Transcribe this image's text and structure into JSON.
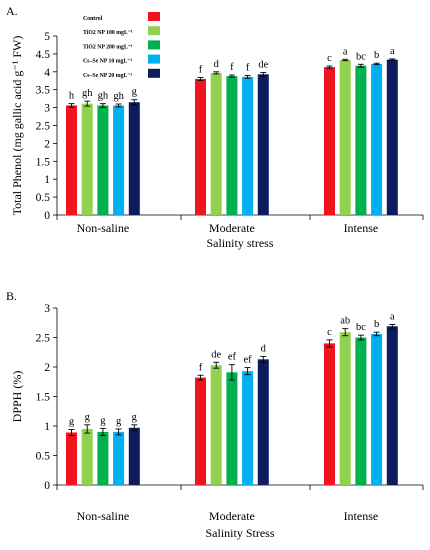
{
  "colors": [
    "#f0141e",
    "#92d050",
    "#00b050",
    "#00b0f0",
    "#0d1c5e"
  ],
  "chart_data": [
    {
      "type": "bar",
      "panel_label": "A.",
      "ylabel": "Total Phenol (mg gallic acid g⁻¹ FW)",
      "xlabel": "Salinity stress",
      "ylim": [
        0,
        5
      ],
      "yticks": [
        "0",
        "0.5",
        "1",
        "1.5",
        "2",
        "2.5",
        "3",
        "3.5",
        "4",
        "4.5",
        "5"
      ],
      "grid": false,
      "legend_position": "top-left",
      "categories": [
        "Non-saline",
        "Moderate",
        "Intense"
      ],
      "series": [
        {
          "name": "Control",
          "values": [
            3.06,
            3.8,
            4.13
          ],
          "errors": [
            0.05,
            0.04,
            0.03
          ],
          "letters": [
            "h",
            "f",
            "c"
          ]
        },
        {
          "name": "TiO2 NP 100 mgL⁻¹",
          "values": [
            3.11,
            3.97,
            4.33
          ],
          "errors": [
            0.07,
            0.03,
            0.02
          ],
          "letters": [
            "gh",
            "d",
            "a"
          ]
        },
        {
          "name": "TiO2 NP 200 mgL⁻¹",
          "values": [
            3.06,
            3.88,
            4.17
          ],
          "errors": [
            0.05,
            0.03,
            0.04
          ],
          "letters": [
            "gh",
            "f",
            "bc"
          ]
        },
        {
          "name": "Cs–Se NP 10 mgL⁻¹",
          "values": [
            3.06,
            3.86,
            4.22
          ],
          "errors": [
            0.04,
            0.04,
            0.02
          ],
          "letters": [
            "gh",
            "f",
            "b"
          ]
        },
        {
          "name": "Cs–Se NP 20 mgL⁻¹",
          "values": [
            3.15,
            3.93,
            4.34
          ],
          "errors": [
            0.07,
            0.05,
            0.02
          ],
          "letters": [
            "g",
            "de",
            "a"
          ]
        }
      ]
    },
    {
      "type": "bar",
      "panel_label": "B.",
      "ylabel": "DPPH (%)",
      "xlabel": "Salinity Stress",
      "ylim": [
        0,
        3
      ],
      "yticks": [
        "0",
        "0.5",
        "1",
        "1.5",
        "2",
        "2.5",
        "3"
      ],
      "grid": false,
      "categories": [
        "Non-saline",
        "Moderate",
        "Intense"
      ],
      "series": [
        {
          "name": "Control",
          "values": [
            0.89,
            1.82,
            2.4
          ],
          "errors": [
            0.05,
            0.04,
            0.06
          ],
          "letters": [
            "g",
            "f",
            "c"
          ]
        },
        {
          "name": "TiO2 NP 100 mgL⁻¹",
          "values": [
            0.95,
            2.03,
            2.59
          ],
          "errors": [
            0.07,
            0.05,
            0.06
          ],
          "letters": [
            "g",
            "de",
            "ab"
          ]
        },
        {
          "name": "TiO2 NP 200 mgL⁻¹",
          "values": [
            0.9,
            1.91,
            2.5
          ],
          "errors": [
            0.06,
            0.13,
            0.04
          ],
          "letters": [
            "g",
            "ef",
            "bc"
          ]
        },
        {
          "name": "Cs–Se NP 10 mgL⁻¹",
          "values": [
            0.9,
            1.93,
            2.56
          ],
          "errors": [
            0.05,
            0.06,
            0.03
          ],
          "letters": [
            "g",
            "ef",
            "b"
          ]
        },
        {
          "name": "Cs–Se NP 20 mgL⁻¹",
          "values": [
            0.97,
            2.13,
            2.69
          ],
          "errors": [
            0.05,
            0.05,
            0.03
          ],
          "letters": [
            "g",
            "d",
            "a"
          ]
        }
      ]
    }
  ]
}
